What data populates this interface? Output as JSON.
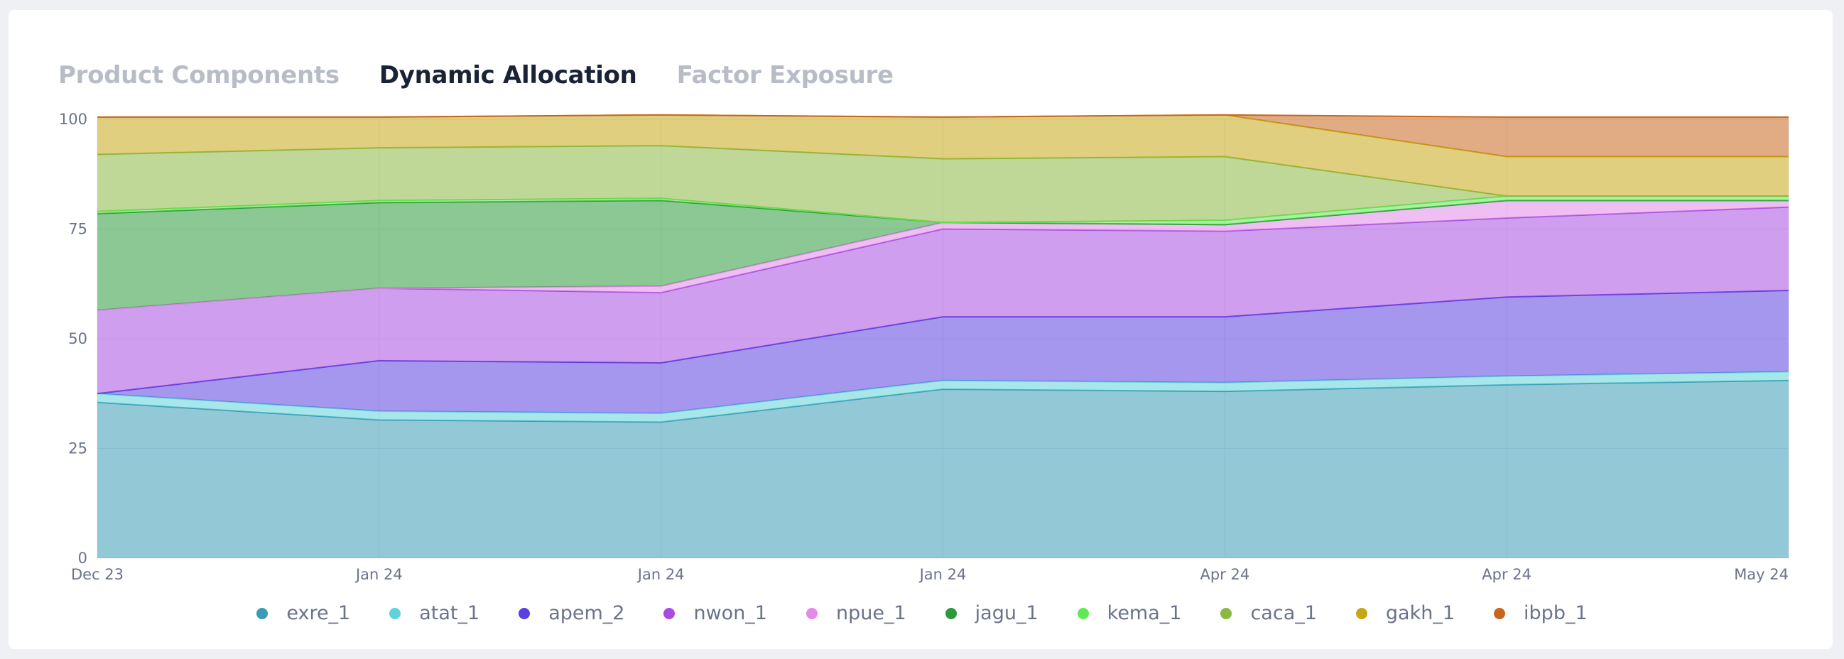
{
  "tabs": [
    {
      "label": "Product Components",
      "active": false
    },
    {
      "label": "Dynamic Allocation",
      "active": true
    },
    {
      "label": "Factor Exposure",
      "active": false
    }
  ],
  "chart_data": {
    "type": "area",
    "stacked": true,
    "x": [
      "Dec 23",
      "Jan 24",
      "Jan 24",
      "Jan 24",
      "Apr 24",
      "Apr 24",
      "May 24"
    ],
    "ylim": [
      0,
      100
    ],
    "yticks": [
      0,
      25,
      50,
      75,
      100
    ],
    "grid": true,
    "legend_position": "bottom",
    "series": [
      {
        "name": "exre_1",
        "color": "#3a9bb6",
        "values": [
          35.5,
          31.5,
          31,
          38.5,
          38,
          39.5,
          40.5
        ]
      },
      {
        "name": "atat_1",
        "color": "#5fd3d8",
        "values": [
          2,
          2,
          2,
          2,
          2,
          2,
          2
        ]
      },
      {
        "name": "apem_2",
        "color": "#5b3fe0",
        "values": [
          0,
          11.5,
          11.5,
          14.5,
          15,
          18,
          18.5
        ]
      },
      {
        "name": "nwon_1",
        "color": "#a74ee0",
        "values": [
          19,
          16.5,
          16,
          20,
          19.5,
          18,
          19
        ]
      },
      {
        "name": "npue_1",
        "color": "#e289ea",
        "values": [
          0,
          0,
          1.5,
          1.5,
          1.5,
          4,
          1.5
        ]
      },
      {
        "name": "jagu_1",
        "color": "#2b9a3a",
        "values": [
          22,
          19.5,
          19.5,
          0,
          0,
          0,
          0
        ]
      },
      {
        "name": "kema_1",
        "color": "#63e855",
        "values": [
          0.5,
          0.5,
          0.5,
          0,
          1,
          1,
          1
        ]
      },
      {
        "name": "caca_1",
        "color": "#8ab843",
        "values": [
          13,
          12,
          12,
          14.5,
          14.5,
          0,
          0
        ]
      },
      {
        "name": "gakh_1",
        "color": "#c5a815",
        "values": [
          8.5,
          7,
          7,
          9.5,
          9.5,
          9,
          9
        ]
      },
      {
        "name": "ibpb_1",
        "color": "#c8661d",
        "values": [
          0,
          0,
          0,
          0,
          0,
          9,
          9
        ]
      }
    ]
  }
}
